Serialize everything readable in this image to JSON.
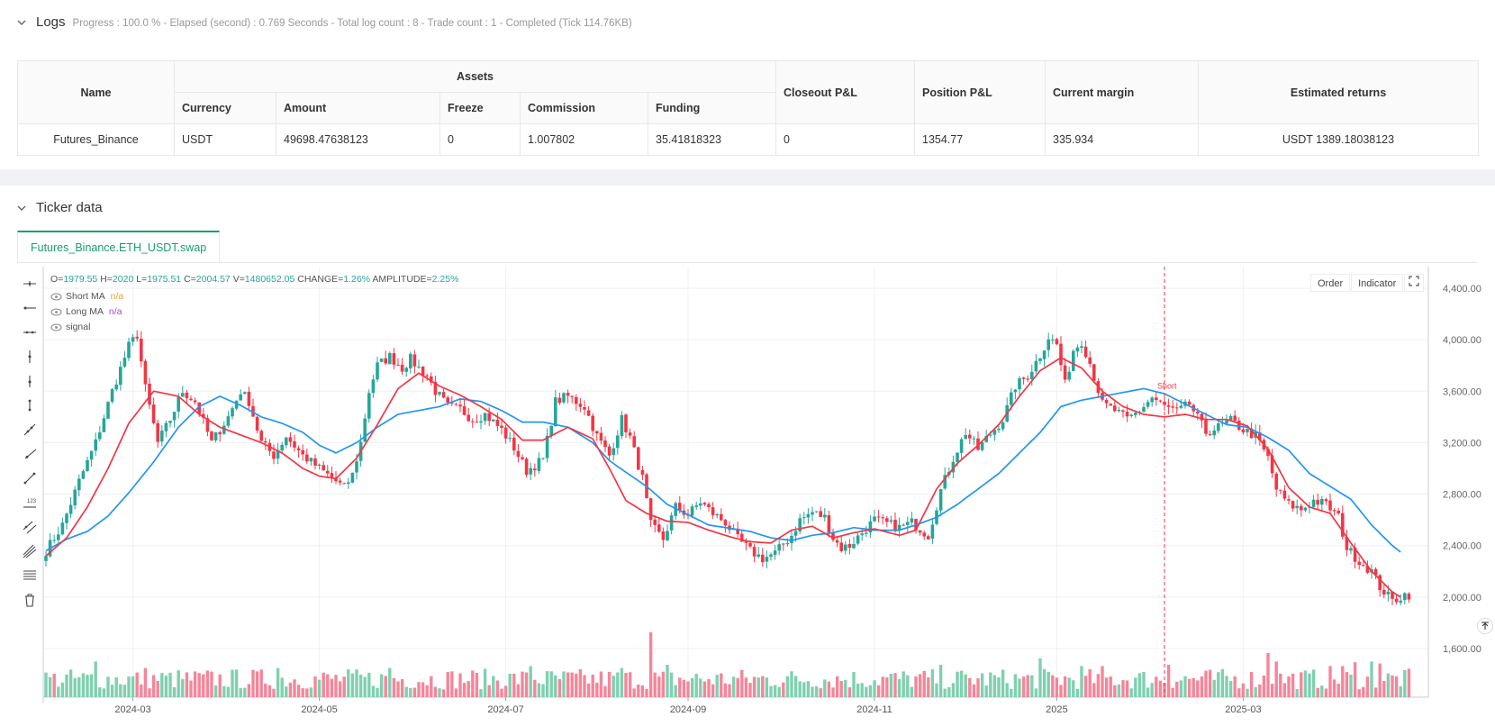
{
  "logs": {
    "title": "Logs",
    "status": "Progress : 100.0 % - Elapsed (second) : 0.769   Seconds - Total log count : 8 - Trade count : 1 - Completed (Tick 114.76KB)"
  },
  "assets_table": {
    "headers": {
      "name": "Name",
      "assets": "Assets",
      "currency": "Currency",
      "amount": "Amount",
      "freeze": "Freeze",
      "commission": "Commission",
      "funding": "Funding",
      "closeout": "Closeout P&L",
      "position": "Position P&L",
      "margin": "Current margin",
      "returns": "Estimated returns"
    },
    "row": {
      "name": "Futures_Binance",
      "currency": "USDT",
      "amount": "49698.47638123",
      "freeze": "0",
      "commission": "1.007802",
      "funding": "35.41818323",
      "closeout": "0",
      "position": "1354.77",
      "margin": "335.934",
      "returns": "USDT 1389.18038123"
    }
  },
  "ticker": {
    "title": "Ticker data",
    "tab": "Futures_Binance.ETH_USDT.swap",
    "ohlc": {
      "o_label": "O=",
      "o": "1979.55",
      "h_label": "H=",
      "h": "2020",
      "l_label": "L=",
      "l": "1975.51",
      "c_label": "C=",
      "c": "2004.57",
      "v_label": "V=",
      "v": "1480652.05",
      "change_label": "CHANGE=",
      "change": "1.26%",
      "amp_label": "AMPLITUDE=",
      "amp": "2.25%"
    },
    "legend": [
      {
        "label": "Short MA",
        "value": "n/a",
        "color": "#f0a030"
      },
      {
        "label": "Long MA",
        "value": "n/a",
        "color": "#9c4dcc"
      },
      {
        "label": "signal",
        "value": "",
        "color": "#555555"
      }
    ],
    "buttons": {
      "order": "Order",
      "indicator": "Indicator"
    },
    "tools": [
      "crosshair-icon",
      "horizontal-ray-icon",
      "horizontal-line-icon",
      "vertical-line-icon",
      "vertical-ray-icon",
      "vertical-segment-icon",
      "trend-line-icon",
      "ray-line-icon",
      "segment-icon",
      "price-label-icon",
      "parallel-channel-icon",
      "pitchfork-icon",
      "fibonacci-icon",
      "trash-icon"
    ]
  },
  "chart_data": {
    "type": "candlestick",
    "y_ticks": [
      "4,400.00",
      "4,000.00",
      "3,600.00",
      "3,200.00",
      "2,800.00",
      "2,400.00",
      "2,000.00",
      "1,600.00"
    ],
    "x_ticks": [
      "2024-03",
      "2024-05",
      "2024-07",
      "2024-09",
      "2024-11",
      "2025",
      "2025-03"
    ],
    "ylim": [
      1600,
      4400
    ],
    "annotation": {
      "label": "Short",
      "color": "#f23645"
    },
    "colors": {
      "up": "#26a69a",
      "down": "#f23645",
      "short_ma": "#f23645",
      "long_ma": "#2196f3"
    },
    "series": [
      {
        "name": "Short MA",
        "anchors": [
          [
            0,
            2320
          ],
          [
            5,
            2460
          ],
          [
            10,
            2700
          ],
          [
            15,
            3000
          ],
          [
            20,
            3350
          ],
          [
            26,
            3600
          ],
          [
            32,
            3560
          ],
          [
            37,
            3420
          ],
          [
            42,
            3320
          ],
          [
            47,
            3260
          ],
          [
            52,
            3200
          ],
          [
            57,
            3120
          ],
          [
            62,
            3000
          ],
          [
            66,
            2940
          ],
          [
            70,
            2920
          ],
          [
            75,
            3080
          ],
          [
            80,
            3340
          ],
          [
            85,
            3620
          ],
          [
            90,
            3740
          ],
          [
            95,
            3640
          ],
          [
            100,
            3570
          ],
          [
            105,
            3480
          ],
          [
            110,
            3380
          ],
          [
            115,
            3220
          ],
          [
            120,
            3220
          ],
          [
            126,
            3320
          ],
          [
            132,
            3230
          ],
          [
            136,
            3000
          ],
          [
            140,
            2750
          ],
          [
            145,
            2650
          ],
          [
            150,
            2590
          ],
          [
            155,
            2580
          ],
          [
            160,
            2520
          ],
          [
            166,
            2460
          ],
          [
            170,
            2430
          ],
          [
            175,
            2420
          ],
          [
            180,
            2520
          ],
          [
            185,
            2550
          ],
          [
            190,
            2460
          ],
          [
            195,
            2500
          ],
          [
            200,
            2530
          ],
          [
            206,
            2480
          ],
          [
            210,
            2520
          ],
          [
            215,
            2840
          ],
          [
            220,
            3040
          ],
          [
            225,
            3180
          ],
          [
            230,
            3340
          ],
          [
            235,
            3560
          ],
          [
            240,
            3760
          ],
          [
            245,
            3860
          ],
          [
            250,
            3780
          ],
          [
            255,
            3600
          ],
          [
            260,
            3480
          ],
          [
            265,
            3420
          ],
          [
            270,
            3400
          ],
          [
            275,
            3420
          ],
          [
            280,
            3380
          ],
          [
            285,
            3380
          ],
          [
            290,
            3330
          ],
          [
            295,
            3150
          ],
          [
            300,
            2850
          ],
          [
            305,
            2700
          ],
          [
            310,
            2650
          ],
          [
            315,
            2420
          ],
          [
            320,
            2200
          ],
          [
            325,
            2040
          ],
          [
            327,
            2000
          ]
        ]
      },
      {
        "name": "Long MA",
        "anchors": [
          [
            0,
            2360
          ],
          [
            5,
            2450
          ],
          [
            10,
            2510
          ],
          [
            15,
            2630
          ],
          [
            20,
            2810
          ],
          [
            26,
            3050
          ],
          [
            32,
            3320
          ],
          [
            37,
            3480
          ],
          [
            42,
            3560
          ],
          [
            47,
            3490
          ],
          [
            52,
            3400
          ],
          [
            57,
            3350
          ],
          [
            62,
            3280
          ],
          [
            66,
            3180
          ],
          [
            70,
            3120
          ],
          [
            75,
            3200
          ],
          [
            80,
            3320
          ],
          [
            85,
            3420
          ],
          [
            90,
            3450
          ],
          [
            95,
            3480
          ],
          [
            100,
            3540
          ],
          [
            105,
            3520
          ],
          [
            110,
            3450
          ],
          [
            115,
            3360
          ],
          [
            120,
            3360
          ],
          [
            126,
            3320
          ],
          [
            132,
            3200
          ],
          [
            136,
            3060
          ],
          [
            140,
            2970
          ],
          [
            145,
            2860
          ],
          [
            150,
            2720
          ],
          [
            155,
            2640
          ],
          [
            160,
            2560
          ],
          [
            166,
            2530
          ],
          [
            170,
            2510
          ],
          [
            175,
            2460
          ],
          [
            180,
            2440
          ],
          [
            185,
            2480
          ],
          [
            190,
            2500
          ],
          [
            195,
            2540
          ],
          [
            200,
            2520
          ],
          [
            206,
            2520
          ],
          [
            210,
            2560
          ],
          [
            215,
            2620
          ],
          [
            220,
            2720
          ],
          [
            225,
            2840
          ],
          [
            230,
            2960
          ],
          [
            235,
            3120
          ],
          [
            240,
            3280
          ],
          [
            245,
            3480
          ],
          [
            250,
            3530
          ],
          [
            255,
            3560
          ],
          [
            260,
            3590
          ],
          [
            265,
            3620
          ],
          [
            270,
            3580
          ],
          [
            275,
            3500
          ],
          [
            280,
            3420
          ],
          [
            285,
            3340
          ],
          [
            290,
            3320
          ],
          [
            295,
            3240
          ],
          [
            300,
            3140
          ],
          [
            305,
            2960
          ],
          [
            310,
            2860
          ],
          [
            315,
            2760
          ],
          [
            320,
            2560
          ],
          [
            325,
            2400
          ],
          [
            327,
            2350
          ]
        ]
      },
      {
        "name": "Close",
        "anchors": [
          [
            0,
            2360
          ],
          [
            4,
            2560
          ],
          [
            8,
            2900
          ],
          [
            12,
            3200
          ],
          [
            16,
            3600
          ],
          [
            20,
            3950
          ],
          [
            22,
            4040
          ],
          [
            24,
            3620
          ],
          [
            27,
            3200
          ],
          [
            30,
            3380
          ],
          [
            33,
            3600
          ],
          [
            36,
            3520
          ],
          [
            40,
            3200
          ],
          [
            44,
            3400
          ],
          [
            47,
            3600
          ],
          [
            49,
            3520
          ],
          [
            52,
            3200
          ],
          [
            55,
            3100
          ],
          [
            58,
            3250
          ],
          [
            62,
            3100
          ],
          [
            66,
            3000
          ],
          [
            70,
            2900
          ],
          [
            72,
            2850
          ],
          [
            74,
            2950
          ],
          [
            76,
            3200
          ],
          [
            78,
            3600
          ],
          [
            80,
            3800
          ],
          [
            83,
            3870
          ],
          [
            86,
            3780
          ],
          [
            88,
            3850
          ],
          [
            90,
            3780
          ],
          [
            92,
            3720
          ],
          [
            94,
            3600
          ],
          [
            97,
            3480
          ],
          [
            100,
            3460
          ],
          [
            103,
            3380
          ],
          [
            106,
            3420
          ],
          [
            110,
            3300
          ],
          [
            113,
            3160
          ],
          [
            116,
            2980
          ],
          [
            120,
            3070
          ],
          [
            123,
            3520
          ],
          [
            126,
            3560
          ],
          [
            130,
            3480
          ],
          [
            133,
            3250
          ],
          [
            136,
            3100
          ],
          [
            139,
            3380
          ],
          [
            141,
            3240
          ],
          [
            144,
            2920
          ],
          [
            146,
            2560
          ],
          [
            149,
            2450
          ],
          [
            152,
            2700
          ],
          [
            155,
            2640
          ],
          [
            158,
            2740
          ],
          [
            161,
            2650
          ],
          [
            164,
            2580
          ],
          [
            167,
            2450
          ],
          [
            170,
            2360
          ],
          [
            173,
            2300
          ],
          [
            176,
            2340
          ],
          [
            180,
            2480
          ],
          [
            182,
            2600
          ],
          [
            185,
            2660
          ],
          [
            188,
            2620
          ],
          [
            190,
            2460
          ],
          [
            192,
            2380
          ],
          [
            194,
            2400
          ],
          [
            197,
            2500
          ],
          [
            200,
            2600
          ],
          [
            203,
            2570
          ],
          [
            206,
            2540
          ],
          [
            209,
            2580
          ],
          [
            213,
            2480
          ],
          [
            216,
            2830
          ],
          [
            219,
            3080
          ],
          [
            222,
            3280
          ],
          [
            225,
            3150
          ],
          [
            228,
            3270
          ],
          [
            231,
            3380
          ],
          [
            234,
            3640
          ],
          [
            237,
            3720
          ],
          [
            240,
            3880
          ],
          [
            242,
            4020
          ],
          [
            244,
            3960
          ],
          [
            246,
            3650
          ],
          [
            248,
            3920
          ],
          [
            250,
            3990
          ],
          [
            252,
            3820
          ],
          [
            255,
            3500
          ],
          [
            258,
            3450
          ],
          [
            261,
            3380
          ],
          [
            264,
            3450
          ],
          [
            267,
            3550
          ],
          [
            270,
            3480
          ],
          [
            273,
            3440
          ],
          [
            276,
            3500
          ],
          [
            280,
            3280
          ],
          [
            283,
            3320
          ],
          [
            286,
            3370
          ],
          [
            289,
            3300
          ],
          [
            292,
            3250
          ],
          [
            295,
            3080
          ],
          [
            297,
            2840
          ],
          [
            300,
            2720
          ],
          [
            303,
            2680
          ],
          [
            306,
            2750
          ],
          [
            309,
            2720
          ],
          [
            312,
            2620
          ],
          [
            314,
            2380
          ],
          [
            317,
            2280
          ],
          [
            320,
            2200
          ],
          [
            322,
            2080
          ],
          [
            325,
            1970
          ],
          [
            328,
            2020
          ]
        ]
      },
      {
        "name": "Volume",
        "spikes": [
          [
            12,
            0.55
          ],
          [
            24,
            0.45
          ],
          [
            56,
            0.45
          ],
          [
            83,
            0.45
          ],
          [
            117,
            0.48
          ],
          [
            139,
            0.45
          ],
          [
            146,
            1.0
          ],
          [
            150,
            0.5
          ],
          [
            216,
            0.5
          ],
          [
            240,
            0.6
          ],
          [
            250,
            0.48
          ],
          [
            255,
            0.48
          ],
          [
            271,
            0.5
          ],
          [
            295,
            0.68
          ],
          [
            297,
            0.55
          ],
          [
            310,
            0.48
          ],
          [
            313,
            0.48
          ],
          [
            316,
            0.54
          ],
          [
            320,
            0.55
          ],
          [
            322,
            0.52
          ]
        ]
      }
    ]
  }
}
